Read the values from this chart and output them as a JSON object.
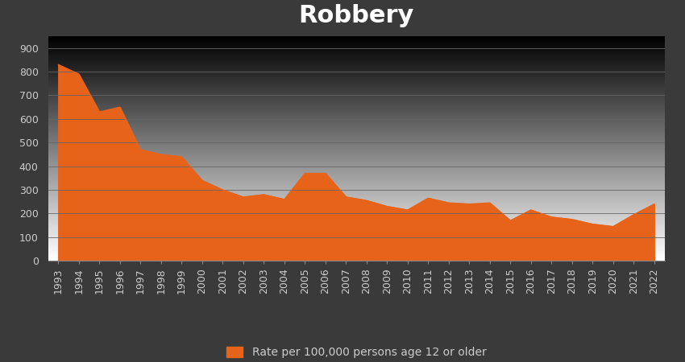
{
  "years": [
    1993,
    1994,
    1995,
    1996,
    1997,
    1998,
    1999,
    2000,
    2001,
    2002,
    2003,
    2004,
    2005,
    2006,
    2007,
    2008,
    2009,
    2010,
    2011,
    2012,
    2013,
    2014,
    2015,
    2016,
    2017,
    2018,
    2019,
    2020,
    2021,
    2022
  ],
  "values": [
    830,
    790,
    630,
    650,
    470,
    450,
    440,
    340,
    300,
    270,
    280,
    260,
    370,
    370,
    270,
    255,
    230,
    215,
    265,
    245,
    240,
    245,
    170,
    215,
    185,
    175,
    155,
    145,
    195,
    240
  ],
  "fill_color": "#E8631A",
  "line_color": "#E8631A",
  "bg_dark": "#3a3a3a",
  "bg_light": "#484848",
  "title": "Robbery",
  "title_color": "#ffffff",
  "title_fontsize": 22,
  "title_fontweight": "bold",
  "legend_label": "Rate per 100,000 persons age 12 or older",
  "legend_color": "#E8631A",
  "yticks": [
    0,
    100,
    200,
    300,
    400,
    500,
    600,
    700,
    800,
    900
  ],
  "ylim": [
    0,
    950
  ],
  "grid_color": "#666666",
  "tick_color": "#cccccc",
  "tick_fontsize": 9,
  "spine_color": "#888888",
  "legend_fontsize": 10
}
